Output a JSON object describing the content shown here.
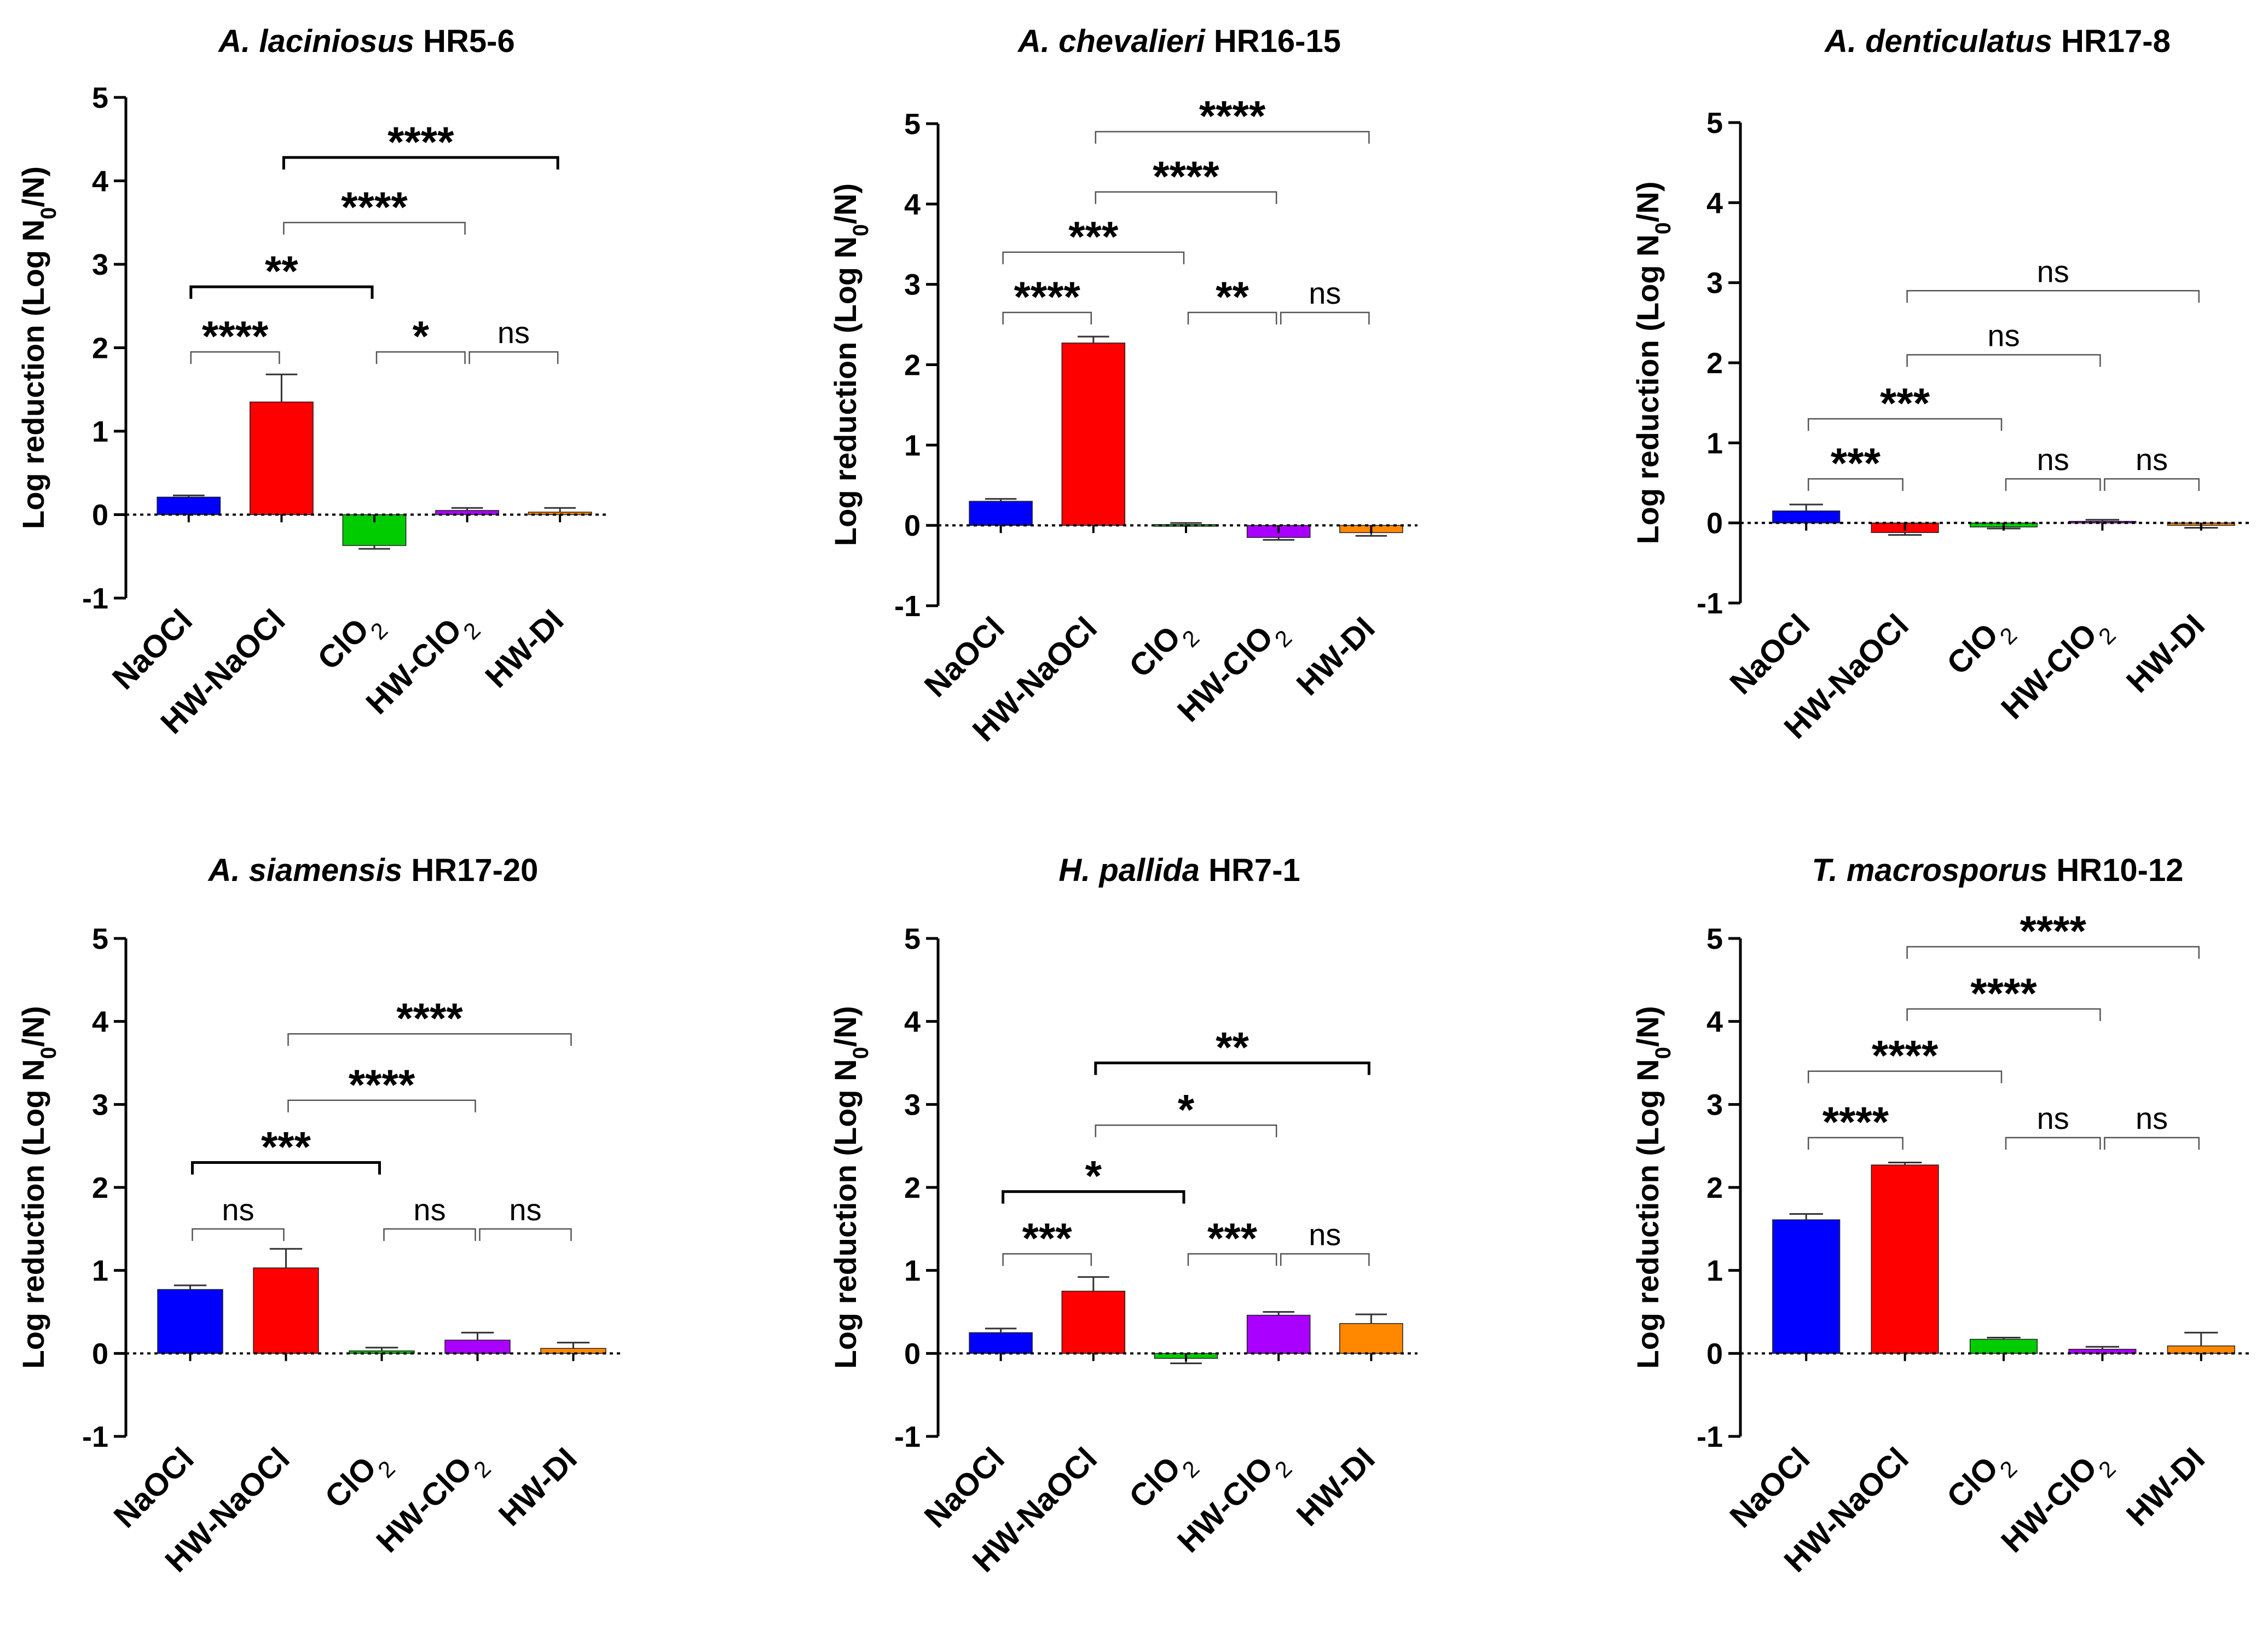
{
  "colors": {
    "NaOCl": "#0000ff",
    "HW-NaOCl": "#ff0000",
    "ClO2": "#00cc00",
    "HW-ClO2": "#aa00ff",
    "HW-DI": "#ff8800",
    "axis": "#000000",
    "bracket_bold": "#000000",
    "bracket_thin": "#555555"
  },
  "chart_data": [
    {
      "type": "bar",
      "title_italic": "A. laciniosus",
      "title_regular": " HR5-6",
      "ylabel": "Log reduction (Log N0/N)",
      "ylim": [
        -1,
        5
      ],
      "yticks": [
        "-1",
        "0",
        "1",
        "2",
        "3",
        "4",
        "5"
      ],
      "categories": [
        "NaOCl",
        "HW-NaOCl",
        "ClO2",
        "HW-ClO2",
        "HW-DI"
      ],
      "values": [
        0.21,
        1.35,
        -0.37,
        0.05,
        0.03
      ],
      "errors": [
        0.02,
        0.33,
        0.04,
        0.03,
        0.05
      ],
      "comparisons": [
        {
          "from": 0,
          "to": 1,
          "y": 1.95,
          "label": "****",
          "bold": false
        },
        {
          "from": 0,
          "to": 2,
          "y": 2.73,
          "label": "**",
          "bold": true
        },
        {
          "from": 1,
          "to": 3,
          "y": 3.5,
          "label": "****",
          "bold": false
        },
        {
          "from": 1,
          "to": 4,
          "y": 4.28,
          "label": "****",
          "bold": true
        },
        {
          "from": 2,
          "to": 3,
          "y": 1.95,
          "label": "*",
          "bold": false
        },
        {
          "from": 3,
          "to": 4,
          "y": 1.95,
          "label": "ns",
          "bold": false
        }
      ]
    },
    {
      "type": "bar",
      "title_italic": "A. chevalieri",
      "title_regular": " HR16-15",
      "ylabel": "Log reduction (Log N0/N)",
      "ylim": [
        -1,
        5
      ],
      "yticks": [
        "-1",
        "0",
        "1",
        "2",
        "3",
        "4",
        "5"
      ],
      "categories": [
        "NaOCl",
        "HW-NaOCl",
        "ClO2",
        "HW-ClO2",
        "HW-DI"
      ],
      "values": [
        0.3,
        2.27,
        0.01,
        -0.15,
        -0.09
      ],
      "errors": [
        0.03,
        0.08,
        0.02,
        0.03,
        0.04
      ],
      "comparisons": [
        {
          "from": 0,
          "to": 1,
          "y": 2.65,
          "label": "****",
          "bold": false
        },
        {
          "from": 0,
          "to": 2,
          "y": 3.4,
          "label": "***",
          "bold": false
        },
        {
          "from": 1,
          "to": 3,
          "y": 4.15,
          "label": "****",
          "bold": false
        },
        {
          "from": 1,
          "to": 4,
          "y": 4.9,
          "label": "****",
          "bold": false
        },
        {
          "from": 2,
          "to": 3,
          "y": 2.65,
          "label": "**",
          "bold": false
        },
        {
          "from": 3,
          "to": 4,
          "y": 2.65,
          "label": "ns",
          "bold": false
        }
      ]
    },
    {
      "type": "bar",
      "title_italic": "A. denticulatus",
      "title_regular": " HR17-8",
      "ylabel": "Log reduction (Log N0/N)",
      "ylim": [
        -1,
        5
      ],
      "yticks": [
        "-1",
        "0",
        "1",
        "2",
        "3",
        "4",
        "5"
      ],
      "categories": [
        "NaOCl",
        "HW-NaOCl",
        "ClO2",
        "HW-ClO2",
        "HW-DI"
      ],
      "values": [
        0.15,
        -0.12,
        -0.05,
        0.02,
        -0.03
      ],
      "errors": [
        0.08,
        0.03,
        0.02,
        0.02,
        0.03
      ],
      "comparisons": [
        {
          "from": 0,
          "to": 1,
          "y": 0.55,
          "label": "***",
          "bold": false
        },
        {
          "from": 0,
          "to": 2,
          "y": 1.3,
          "label": "***",
          "bold": false
        },
        {
          "from": 1,
          "to": 3,
          "y": 2.1,
          "label": "ns",
          "bold": false
        },
        {
          "from": 1,
          "to": 4,
          "y": 2.9,
          "label": "ns",
          "bold": false
        },
        {
          "from": 2,
          "to": 3,
          "y": 0.55,
          "label": "ns",
          "bold": false
        },
        {
          "from": 3,
          "to": 4,
          "y": 0.55,
          "label": "ns",
          "bold": false
        }
      ]
    },
    {
      "type": "bar",
      "title_italic": "A. siamensis",
      "title_regular": " HR17-20",
      "ylabel": "Log reduction (Log N0/N)",
      "ylim": [
        -1,
        5
      ],
      "yticks": [
        "-1",
        "0",
        "1",
        "2",
        "3",
        "4",
        "5"
      ],
      "categories": [
        "NaOCl",
        "HW-NaOCl",
        "ClO2",
        "HW-ClO2",
        "HW-DI"
      ],
      "values": [
        0.77,
        1.03,
        0.03,
        0.16,
        0.06
      ],
      "errors": [
        0.05,
        0.23,
        0.04,
        0.09,
        0.07
      ],
      "comparisons": [
        {
          "from": 0,
          "to": 1,
          "y": 1.5,
          "label": "ns",
          "bold": false
        },
        {
          "from": 0,
          "to": 2,
          "y": 2.3,
          "label": "***",
          "bold": true
        },
        {
          "from": 1,
          "to": 3,
          "y": 3.05,
          "label": "****",
          "bold": false
        },
        {
          "from": 1,
          "to": 4,
          "y": 3.85,
          "label": "****",
          "bold": false
        },
        {
          "from": 2,
          "to": 3,
          "y": 1.5,
          "label": "ns",
          "bold": false
        },
        {
          "from": 3,
          "to": 4,
          "y": 1.5,
          "label": "ns",
          "bold": false
        }
      ]
    },
    {
      "type": "bar",
      "title_italic": "H. pallida",
      "title_regular": " HR7-1",
      "ylabel": "Log reduction (Log N0/N)",
      "ylim": [
        -1,
        5
      ],
      "yticks": [
        "-1",
        "0",
        "1",
        "2",
        "3",
        "4",
        "5"
      ],
      "categories": [
        "NaOCl",
        "HW-NaOCl",
        "ClO2",
        "HW-ClO2",
        "HW-DI"
      ],
      "values": [
        0.25,
        0.75,
        -0.06,
        0.46,
        0.36
      ],
      "errors": [
        0.05,
        0.17,
        0.06,
        0.04,
        0.11
      ],
      "comparisons": [
        {
          "from": 0,
          "to": 1,
          "y": 1.2,
          "label": "***",
          "bold": false
        },
        {
          "from": 0,
          "to": 2,
          "y": 1.95,
          "label": "*",
          "bold": true
        },
        {
          "from": 1,
          "to": 3,
          "y": 2.75,
          "label": "*",
          "bold": false
        },
        {
          "from": 1,
          "to": 4,
          "y": 3.5,
          "label": "**",
          "bold": true
        },
        {
          "from": 2,
          "to": 3,
          "y": 1.2,
          "label": "***",
          "bold": false
        },
        {
          "from": 3,
          "to": 4,
          "y": 1.2,
          "label": "ns",
          "bold": false
        }
      ]
    },
    {
      "type": "bar",
      "title_italic": "T. macrosporus",
      "title_regular": " HR10-12",
      "ylabel": "Log reduction (Log N0/N)",
      "ylim": [
        -1,
        5
      ],
      "yticks": [
        "-1",
        "0",
        "1",
        "2",
        "3",
        "4",
        "5"
      ],
      "categories": [
        "NaOCl",
        "HW-NaOCl",
        "ClO2",
        "HW-ClO2",
        "HW-DI"
      ],
      "values": [
        1.61,
        2.27,
        0.17,
        0.05,
        0.09
      ],
      "errors": [
        0.07,
        0.03,
        0.02,
        0.03,
        0.16
      ],
      "comparisons": [
        {
          "from": 0,
          "to": 1,
          "y": 2.6,
          "label": "****",
          "bold": false
        },
        {
          "from": 0,
          "to": 2,
          "y": 3.4,
          "label": "****",
          "bold": false
        },
        {
          "from": 1,
          "to": 3,
          "y": 4.15,
          "label": "****",
          "bold": false
        },
        {
          "from": 1,
          "to": 4,
          "y": 4.9,
          "label": "****",
          "bold": false
        },
        {
          "from": 2,
          "to": 3,
          "y": 2.6,
          "label": "ns",
          "bold": false
        },
        {
          "from": 3,
          "to": 4,
          "y": 2.6,
          "label": "ns",
          "bold": false
        }
      ]
    }
  ]
}
